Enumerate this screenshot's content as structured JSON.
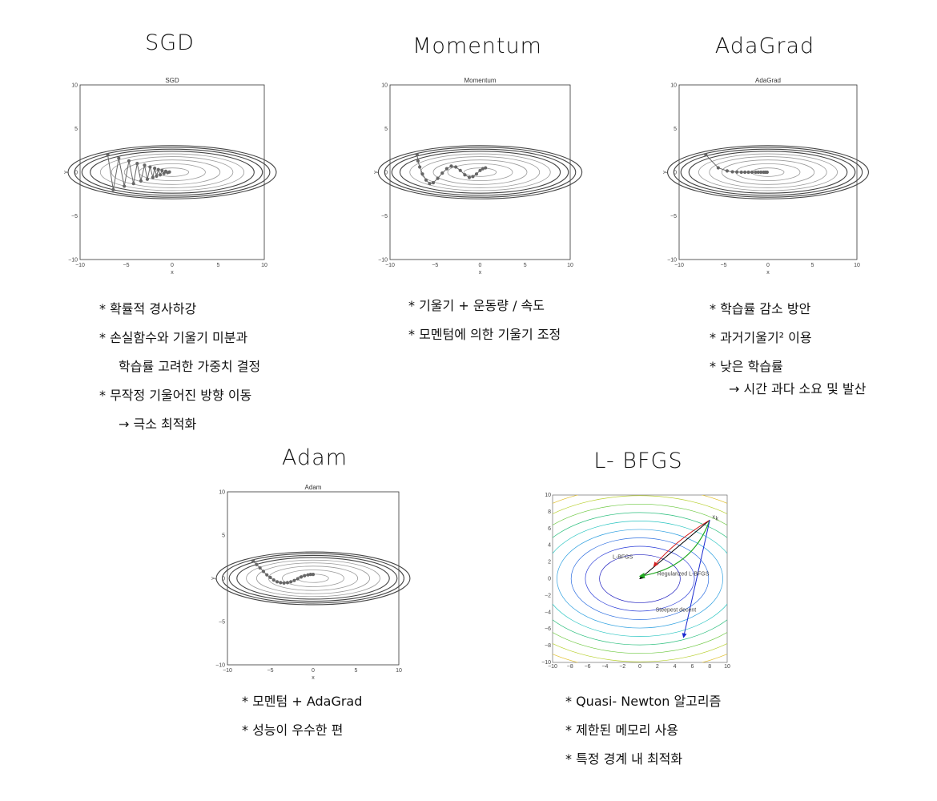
{
  "sections": [
    {
      "id": "sgd",
      "heading": "SGD",
      "plot_title": "SGD",
      "notes": [
        "* 확률적 경사하강",
        "* 손실함수와 기울기 미분과",
        "학습률 고려한 가중치 결정",
        "* 무작정 기울어진 방향 이동",
        "→ 극소 최적화"
      ]
    },
    {
      "id": "momentum",
      "heading": "Momentum",
      "plot_title": "Momentum",
      "notes": [
        "* 기울기 + 운동량 / 속도",
        "* 모멘텀에 의한 기울기 조정"
      ]
    },
    {
      "id": "adagrad",
      "heading": "AdaGrad",
      "plot_title": "AdaGrad",
      "notes": [
        "* 학습률 감소 방안",
        "* 과거기울기² 이용",
        "* 낮은 학습률",
        "→ 시간 과다 소요 및 발산"
      ]
    },
    {
      "id": "adam",
      "heading": "Adam",
      "plot_title": "Adam",
      "notes": [
        "* 모멘텀 + AdaGrad",
        "* 성능이 우수한 편"
      ]
    },
    {
      "id": "lbfgs",
      "heading": "L- BFGS",
      "plot_title": "",
      "notes": [
        "* Quasi- Newton 알고리즘",
        "* 제한된 메모리 사용",
        "* 특정 경계 내 최적화"
      ]
    }
  ],
  "axes": {
    "xlabel": "x",
    "ylabel": "y",
    "xticks": [
      "−10",
      "−5",
      "0",
      "5",
      "10"
    ],
    "yticks": [
      "10",
      "5",
      "0",
      "−5",
      "−10"
    ],
    "lbfgs_ticks": [
      "10",
      "8",
      "6",
      "4",
      "2",
      "0",
      "−2",
      "−4",
      "−6",
      "−8",
      "−10"
    ],
    "lbfgs_xticks": [
      "−10",
      "−8",
      "−6",
      "−4",
      "−2",
      "0",
      "2",
      "4",
      "6",
      "8",
      "10"
    ]
  },
  "lbfgs_labels": {
    "start": "x",
    "start_sub": "k",
    "lbfgs": "L-BFGS",
    "regularized": "Regularized L-BFGS",
    "steepest": "Steepest decent"
  },
  "colors": {
    "contour": "#777777",
    "path": "#666666",
    "black": "#000000",
    "red": "#d42020",
    "green": "#22aa22",
    "blue": "#1a2ad0"
  },
  "chart_data": [
    {
      "type": "scatter",
      "title": "SGD",
      "xlabel": "x",
      "ylabel": "y",
      "xlim": [
        -10,
        10
      ],
      "ylim": [
        -10,
        10
      ],
      "x": [
        -7,
        -6.4,
        -5.8,
        -5.2,
        -4.7,
        -4.2,
        -3.8,
        -3.4,
        -3.0,
        -2.7,
        -2.4,
        -2.1,
        -1.9,
        -1.7,
        -1.5,
        -1.3,
        -1.1,
        -0.9,
        -0.7,
        -0.5,
        -0.3
      ],
      "y": [
        2,
        -2.0,
        1.6,
        -1.6,
        1.3,
        -1.3,
        1.0,
        -1.0,
        0.8,
        -0.8,
        0.6,
        -0.6,
        0.45,
        -0.45,
        0.3,
        -0.3,
        0.2,
        -0.15,
        0.1,
        -0.05,
        0.02
      ]
    },
    {
      "type": "line",
      "title": "Momentum",
      "xlabel": "x",
      "ylabel": "y",
      "xlim": [
        -10,
        10
      ],
      "ylim": [
        -10,
        10
      ],
      "x": [
        -7,
        -6.9,
        -6.7,
        -6.4,
        -6.0,
        -5.6,
        -5.2,
        -4.7,
        -4.2,
        -3.7,
        -3.2,
        -2.7,
        -2.2,
        -1.7,
        -1.2,
        -0.8,
        -0.4,
        0,
        0.3,
        0.6
      ],
      "y": [
        2,
        1.3,
        0.6,
        -0.2,
        -0.9,
        -1.3,
        -1.2,
        -0.7,
        -0.1,
        0.4,
        0.7,
        0.6,
        0.2,
        -0.3,
        -0.6,
        -0.5,
        -0.2,
        0.2,
        0.4,
        0.5
      ]
    },
    {
      "type": "scatter",
      "title": "AdaGrad",
      "xlabel": "x",
      "ylabel": "y",
      "xlim": [
        -10,
        10
      ],
      "ylim": [
        -10,
        10
      ],
      "x": [
        -7,
        -5.6,
        -4.6,
        -4.0,
        -3.5,
        -3.0,
        -2.6,
        -2.2,
        -1.8,
        -1.4,
        -1.1,
        -0.8,
        -0.5,
        -0.3,
        -0.1
      ],
      "y": [
        2,
        0.5,
        0.15,
        0.05,
        0.02,
        0,
        0,
        0,
        0,
        0,
        0,
        0,
        0,
        0,
        0
      ]
    },
    {
      "type": "line",
      "title": "Adam",
      "xlabel": "x",
      "ylabel": "y",
      "xlim": [
        -10,
        10
      ],
      "ylim": [
        -10,
        10
      ],
      "x": [
        -7,
        -6.6,
        -6.2,
        -5.8,
        -5.4,
        -5.0,
        -4.6,
        -4.2,
        -3.8,
        -3.4,
        -3.0,
        -2.6,
        -2.2,
        -1.8,
        -1.4,
        -1.0,
        -0.6,
        -0.3,
        0
      ],
      "y": [
        2,
        1.6,
        1.2,
        0.8,
        0.4,
        0.1,
        -0.2,
        -0.4,
        -0.5,
        -0.55,
        -0.5,
        -0.4,
        -0.25,
        -0.05,
        0.15,
        0.3,
        0.4,
        0.45,
        0.45
      ]
    },
    {
      "type": "line",
      "title": "",
      "xlim": [
        -10,
        10
      ],
      "ylim": [
        -10,
        10
      ],
      "series": [
        {
          "name": "L-BFGS",
          "x": [
            8,
            0
          ],
          "y": [
            7,
            0
          ]
        },
        {
          "name": "Regularized L-BFGS",
          "x": [
            8,
            2,
            0
          ],
          "y": [
            7,
            3,
            0.3
          ]
        },
        {
          "name": "Steepest decent",
          "x": [
            8,
            5
          ],
          "y": [
            7,
            -7
          ]
        }
      ]
    }
  ]
}
